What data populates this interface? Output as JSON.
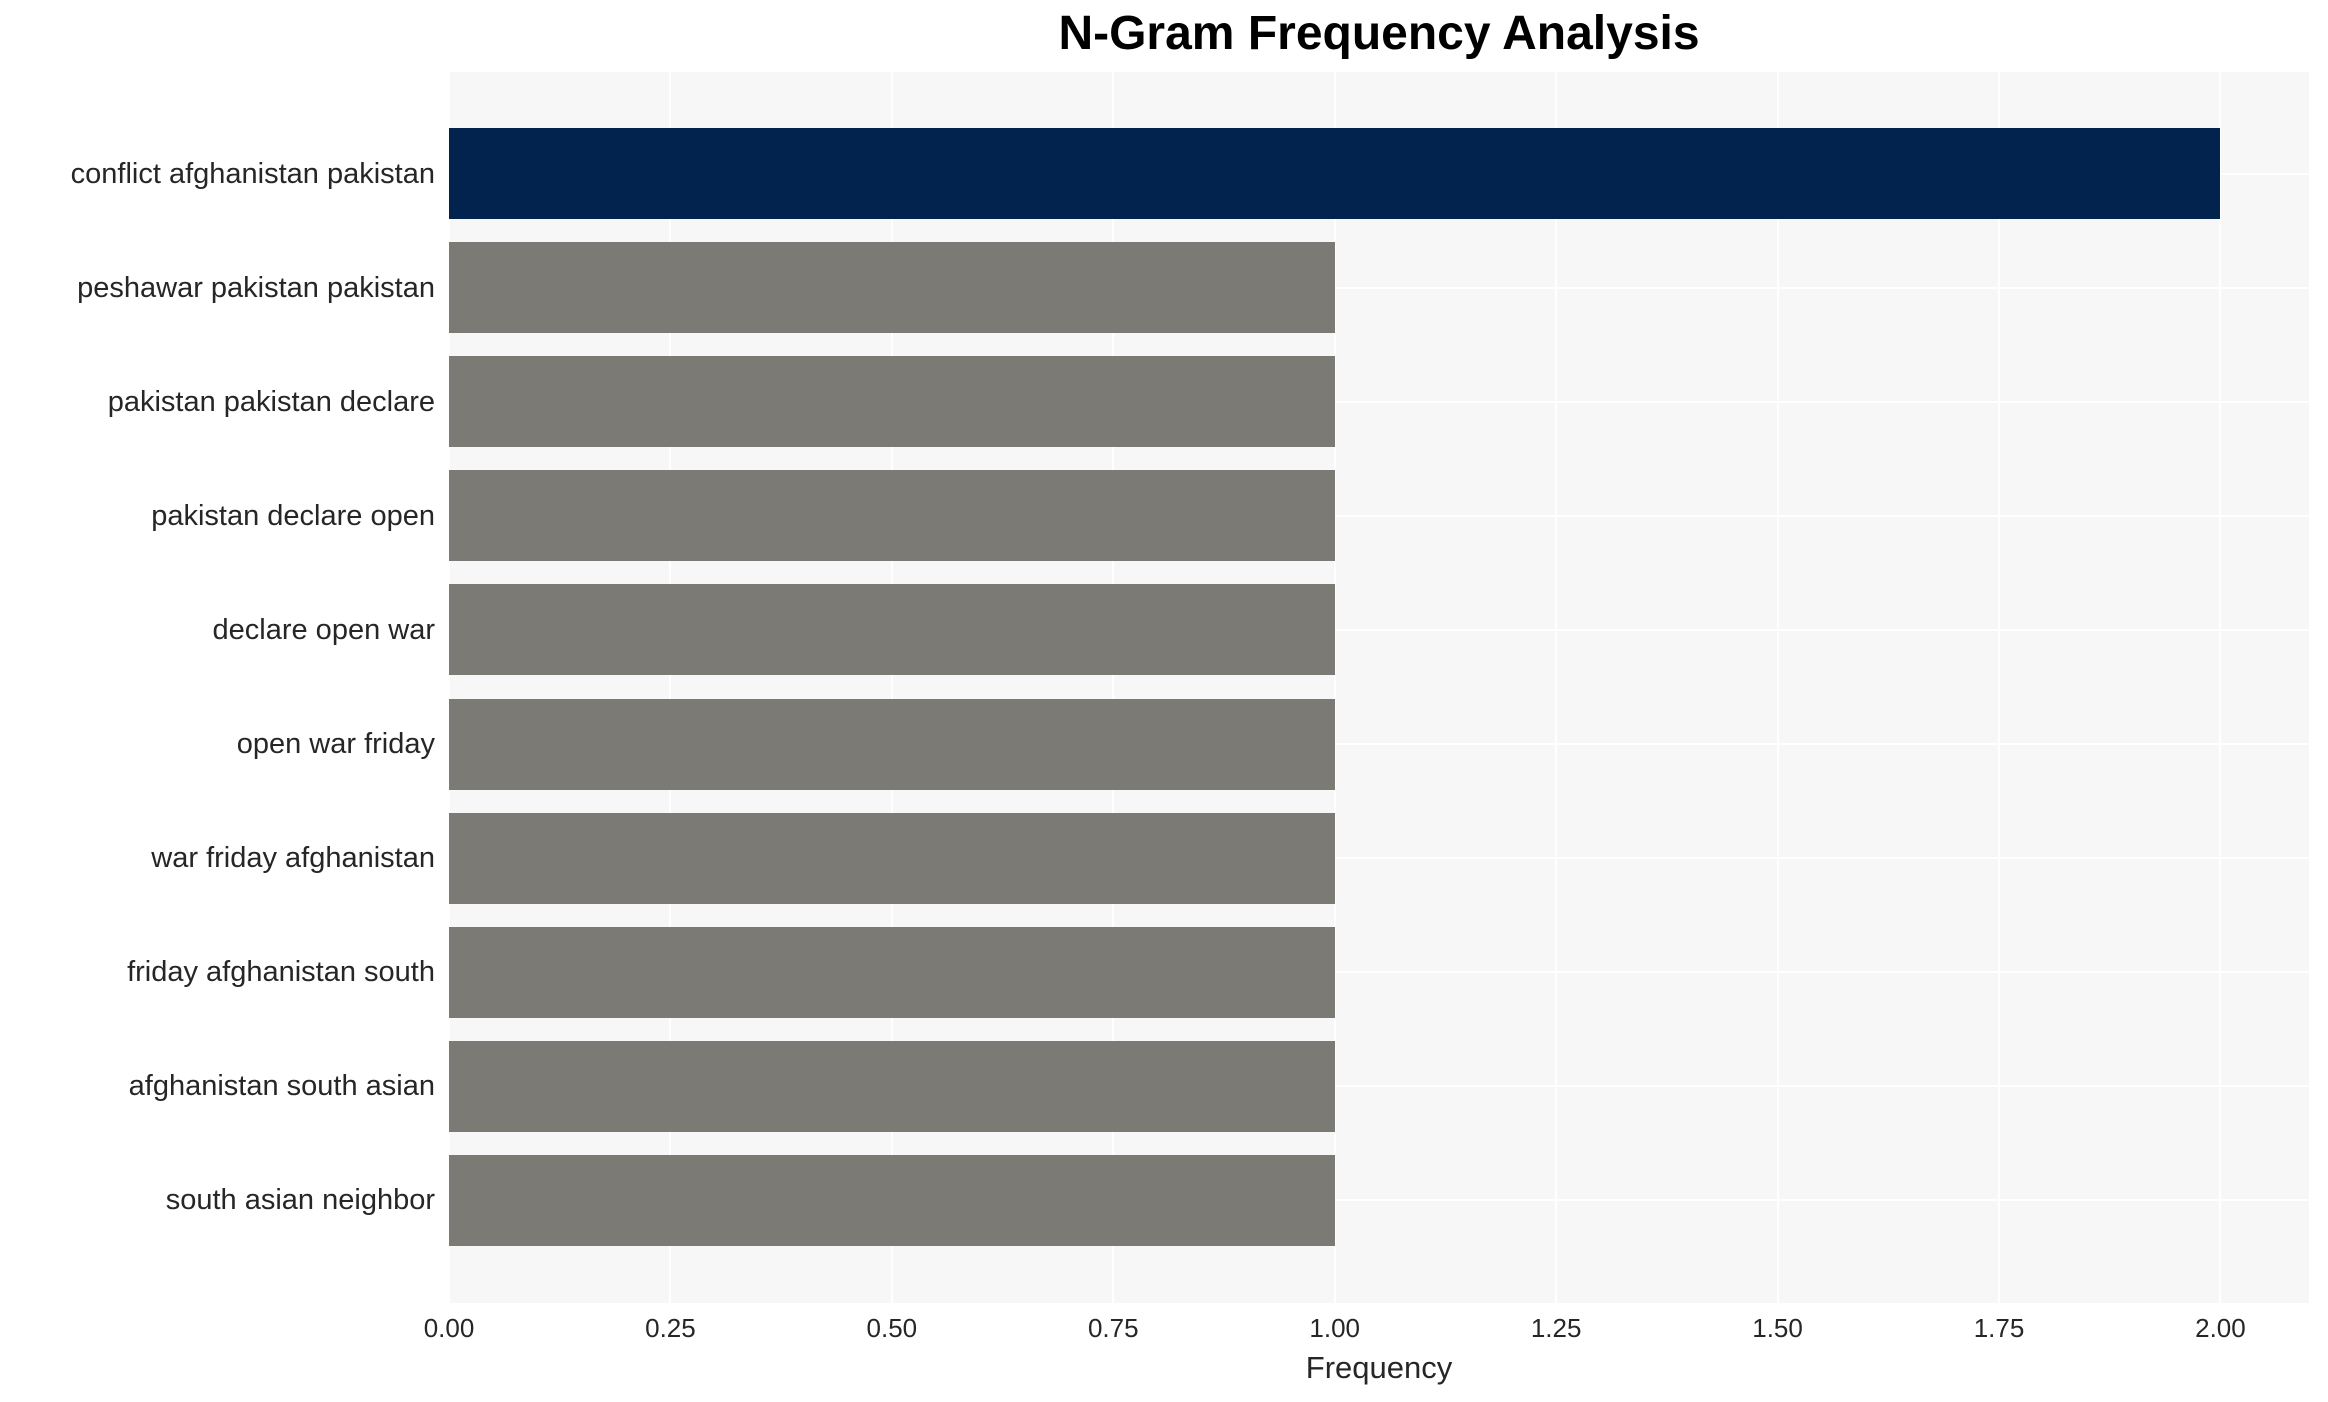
{
  "chart_data": {
    "type": "bar",
    "orientation": "horizontal",
    "title": "N-Gram Frequency Analysis",
    "xlabel": "Frequency",
    "ylabel": "",
    "categories": [
      "conflict afghanistan pakistan",
      "peshawar pakistan pakistan",
      "pakistan pakistan declare",
      "pakistan declare open",
      "declare open war",
      "open war friday",
      "war friday afghanistan",
      "friday afghanistan south",
      "afghanistan south asian",
      "south asian neighbor"
    ],
    "values": [
      2,
      1,
      1,
      1,
      1,
      1,
      1,
      1,
      1,
      1
    ],
    "bar_colors": [
      "#02234E",
      "#7B7A75",
      "#7B7A75",
      "#7B7A75",
      "#7B7A75",
      "#7B7A75",
      "#7B7A75",
      "#7B7A75",
      "#7B7A75",
      "#7B7A75"
    ],
    "xlim": [
      0,
      2.1
    ],
    "xticks": [
      "0.00",
      "0.25",
      "0.50",
      "0.75",
      "1.00",
      "1.25",
      "1.50",
      "1.75",
      "2.00"
    ],
    "xtick_values": [
      0,
      0.25,
      0.5,
      0.75,
      1.0,
      1.25,
      1.5,
      1.75,
      2.0
    ],
    "grid": true,
    "grid_color": "#FFFFFF",
    "legend": false,
    "colors": {
      "highlight_bar": "#02234E",
      "default_bar": "#7B7A75",
      "plot_background": "#F7F7F7",
      "figure_background": "#FFFFFF",
      "text": "#262626",
      "title_text": "#000000"
    }
  }
}
